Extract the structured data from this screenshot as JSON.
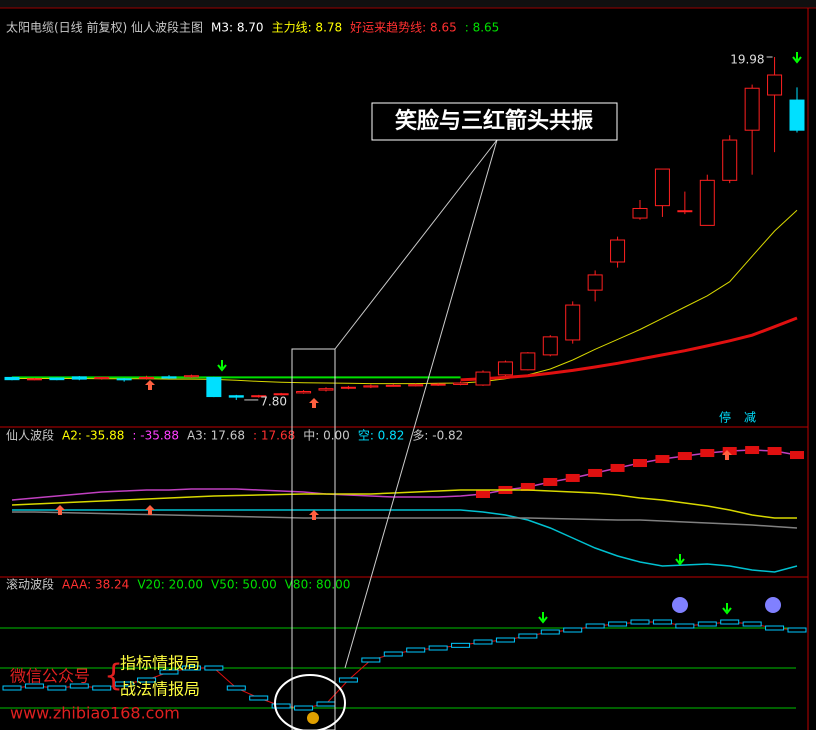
{
  "chart_data": [
    {
      "type": "candlestick",
      "legend": [
        {
          "text": "太阳电缆(日线 前复权) 仙人波段主图",
          "color": "#c8c8c8"
        },
        {
          "text": "M3: 8.70",
          "color": "#ffffff"
        },
        {
          "text": "主力线: 8.78",
          "color": "#ffff00"
        },
        {
          "text": "好运来趋势线: 8.65",
          "color": "#ff3030"
        },
        {
          "text": ": 8.65",
          "color": "#00e000"
        }
      ],
      "categories": [
        null,
        null,
        null,
        null,
        null,
        null,
        null,
        null,
        null,
        null,
        null,
        null,
        null,
        null,
        null,
        null,
        null,
        null,
        null,
        null,
        null,
        null,
        null,
        null,
        null,
        null,
        null,
        null,
        null,
        null,
        null,
        null,
        null,
        null,
        null,
        null
      ],
      "open": [
        8.6,
        8.55,
        8.58,
        8.62,
        8.56,
        8.55,
        8.58,
        8.62,
        8.62,
        8.6,
        7.95,
        7.92,
        8.0,
        8.05,
        8.15,
        8.22,
        8.26,
        8.3,
        8.3,
        8.33,
        8.35,
        8.33,
        8.69,
        8.87,
        9.4,
        9.93,
        11.7,
        12.7,
        14.26,
        14.7,
        14.5,
        14.0,
        15.6,
        17.38,
        18.63,
        18.45
      ],
      "high": [
        8.62,
        8.58,
        8.6,
        8.65,
        8.62,
        8.58,
        8.66,
        8.68,
        8.7,
        8.62,
        7.98,
        7.98,
        8.05,
        8.15,
        8.25,
        8.3,
        8.35,
        8.36,
        8.38,
        8.4,
        8.45,
        8.85,
        9.2,
        9.5,
        10.1,
        11.3,
        12.4,
        13.6,
        14.9,
        16.0,
        15.2,
        15.8,
        17.2,
        19.0,
        19.98,
        18.9
      ],
      "low": [
        8.5,
        8.5,
        8.5,
        8.5,
        8.52,
        8.45,
        8.52,
        8.55,
        8.58,
        7.9,
        7.8,
        7.88,
        7.96,
        8.02,
        8.1,
        8.18,
        8.22,
        8.28,
        8.28,
        8.3,
        8.32,
        8.3,
        8.65,
        8.85,
        9.35,
        9.8,
        11.3,
        12.5,
        14.2,
        14.3,
        14.4,
        14.0,
        15.5,
        15.8,
        16.6,
        17.3
      ],
      "close": [
        8.52,
        8.55,
        8.52,
        8.54,
        8.6,
        8.52,
        8.6,
        8.58,
        8.66,
        7.92,
        7.9,
        7.95,
        8.02,
        8.1,
        8.2,
        8.25,
        8.3,
        8.32,
        8.34,
        8.36,
        8.4,
        8.79,
        9.15,
        9.47,
        10.04,
        11.17,
        12.24,
        13.48,
        14.6,
        16.0,
        14.52,
        15.6,
        17.03,
        18.87,
        19.34,
        17.38
      ],
      "up_color": "#ff2020",
      "down_color": "#00e0ff",
      "series": [
        {
          "color": "#00e000",
          "width": 2,
          "values": [
            8.6,
            8.6,
            8.6,
            8.6,
            8.6,
            8.6,
            8.6,
            8.6,
            8.6,
            8.6,
            8.6,
            8.6,
            8.6,
            8.6,
            8.6,
            8.6,
            8.6,
            8.6,
            8.6,
            8.6,
            8.6,
            null,
            null,
            null,
            null,
            null,
            null,
            null,
            null,
            null,
            null,
            null,
            null,
            null,
            null,
            null
          ]
        },
        {
          "color": "#d8d800",
          "width": 1,
          "values": [
            8.56,
            8.56,
            8.56,
            8.56,
            8.55,
            8.55,
            8.55,
            8.54,
            8.54,
            8.53,
            8.5,
            8.46,
            8.43,
            8.41,
            8.4,
            8.39,
            8.38,
            8.38,
            8.38,
            8.39,
            8.4,
            8.45,
            8.55,
            8.69,
            8.9,
            9.22,
            9.6,
            9.95,
            10.3,
            10.7,
            11.1,
            11.5,
            12.0,
            12.9,
            13.8,
            14.54
          ]
        },
        {
          "color": "#e01010",
          "width": 3,
          "values": [
            null,
            null,
            null,
            null,
            null,
            null,
            null,
            null,
            null,
            null,
            null,
            null,
            null,
            null,
            null,
            null,
            null,
            null,
            null,
            null,
            8.51,
            8.55,
            8.6,
            8.66,
            8.75,
            8.85,
            8.97,
            9.1,
            9.25,
            9.4,
            9.55,
            9.72,
            9.9,
            10.1,
            10.4,
            10.71
          ]
        }
      ],
      "ylim": [
        6.91,
        21.72
      ],
      "annotations": [
        {
          "text": "19.98",
          "index": 34,
          "value": 19.98
        },
        {
          "text": "7.80",
          "index": 10,
          "value": 7.8
        }
      ]
    },
    {
      "type": "line",
      "legend": [
        {
          "text": "仙人波段",
          "color": "#c8c8c8"
        },
        {
          "text": "A2: -35.88",
          "color": "#ffff00"
        },
        {
          "text": ": -35.88",
          "color": "#ff40ff"
        },
        {
          "text": "A3: 17.68",
          "color": "#c8c8c8"
        },
        {
          "text": ": 17.68",
          "color": "#ff3030"
        },
        {
          "text": "中: 0.00",
          "color": "#c8c8c8"
        },
        {
          "text": "空: 0.82",
          "color": "#00e0ff"
        },
        {
          "text": "多: -0.82",
          "color": "#c8c8c8"
        }
      ],
      "categories": [
        null,
        null,
        null,
        null,
        null,
        null,
        null,
        null,
        null,
        null,
        null,
        null,
        null,
        null,
        null,
        null,
        null,
        null,
        null,
        null,
        null,
        null,
        null,
        null,
        null,
        null,
        null,
        null,
        null,
        null,
        null,
        null,
        null,
        null,
        null,
        null
      ],
      "series": [
        {
          "color": "#c040c0",
          "values": [
            4.9,
            7.7,
            10.5,
            13.3,
            16.1,
            17.5,
            18.9,
            18.9,
            20.3,
            20.3,
            20.3,
            18.9,
            17.5,
            16.1,
            13.3,
            11.9,
            10.5,
            9.1,
            9.1,
            9.1,
            10.5,
            13.3,
            18.9,
            23.1,
            30.1,
            35.7,
            42.7,
            49.7,
            56.6,
            62.2,
            66.4,
            70.6,
            73.4,
            74.8,
            73.4,
            67.8
          ],
          "blocks_from": 21,
          "block_color": "#e01010"
        },
        {
          "color": "#d8d800",
          "values": [
            -2.1,
            -0.7,
            0.7,
            2.1,
            3.5,
            4.9,
            6.3,
            7.7,
            9.1,
            10.5,
            11.2,
            11.9,
            12.6,
            13.3,
            13.3,
            13.3,
            13.3,
            14.7,
            16.1,
            17.5,
            18.9,
            18.9,
            18.9,
            18.9,
            17.5,
            16.1,
            14.7,
            11.9,
            7.7,
            4.9,
            0.7,
            -3.5,
            -9.1,
            -16.1,
            -20.3,
            -20.3
          ]
        },
        {
          "color": "#00c0d0",
          "values": [
            -9.1,
            -9.1,
            -9.1,
            -9.1,
            -9.1,
            -9.1,
            -9.1,
            -9.1,
            -9.1,
            -9.1,
            -9.1,
            -9.1,
            -9.1,
            -9.1,
            -9.1,
            -9.1,
            -9.1,
            -9.1,
            -9.1,
            -9.1,
            -9.1,
            -11.9,
            -16.1,
            -23.1,
            -34.3,
            -48.3,
            -62.2,
            -73.4,
            -81.8,
            -87.4,
            -86,
            -84.6,
            -87.4,
            -93,
            -95.8,
            -87.4
          ]
        },
        {
          "color": "#808080",
          "values": [
            -11.9,
            -11.9,
            -12.6,
            -13.3,
            -14,
            -14.7,
            -15.4,
            -16.1,
            -16.8,
            -17.5,
            -18.2,
            -18.9,
            -19.6,
            -20.3,
            -20.3,
            -20.3,
            -20.3,
            -20.3,
            -20.3,
            -20.3,
            -20.3,
            -20.3,
            -20.3,
            -20.3,
            -21,
            -21.7,
            -22.4,
            -23.1,
            -23.1,
            -24.5,
            -25.9,
            -27.3,
            -28.7,
            -30.1,
            -32.2,
            -34.3
          ]
        }
      ],
      "ylim": [
        -100,
        100
      ]
    },
    {
      "type": "step",
      "legend": [
        {
          "text": "滚动波段",
          "color": "#c8c8c8"
        },
        {
          "text": "AAA: 38.24",
          "color": "#ff3030"
        },
        {
          "text": "V20: 20.00",
          "color": "#00e000"
        },
        {
          "text": "V50: 50.00",
          "color": "#00e000"
        },
        {
          "text": "V80: 80.00",
          "color": "#00e000"
        }
      ],
      "categories": [
        null,
        null,
        null,
        null,
        null,
        null,
        null,
        null,
        null,
        null,
        null,
        null,
        null,
        null,
        null,
        null,
        null,
        null,
        null,
        null,
        null,
        null,
        null,
        null,
        null,
        null,
        null,
        null,
        null,
        null,
        null,
        null,
        null,
        null,
        null,
        null
      ],
      "values": [
        35,
        36.5,
        35,
        36.5,
        35,
        38,
        41,
        47,
        50,
        50,
        35,
        27.5,
        21.5,
        20,
        23,
        41,
        56,
        60.5,
        63.5,
        65,
        67,
        69.5,
        71,
        74,
        77,
        78.5,
        81.5,
        83,
        84.5,
        84.5,
        81.5,
        83,
        84.5,
        83,
        80,
        78.5
      ],
      "ref_lines": [
        20,
        50,
        80
      ],
      "ref_color": "#00c000",
      "line_color": "#e01010",
      "ylim": [
        5,
        116
      ]
    }
  ],
  "callout": "笑脸与三红箭头共振",
  "watermark": {
    "wechat": "微信公众号",
    "brand1": "指标情报局",
    "brand2": "战法情报局",
    "url": "www.zhibiao168.com"
  },
  "buttons": [
    "停",
    "减"
  ]
}
